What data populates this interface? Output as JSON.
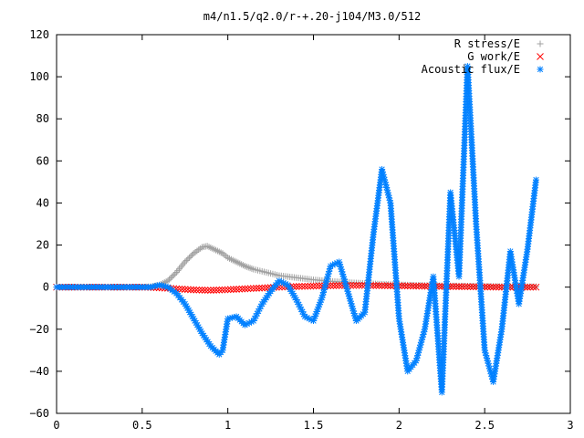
{
  "chart_data": {
    "type": "scatter",
    "title": "m4/n1.5/q2.0/r-+.20-j104/M3.0/512",
    "xlabel": "",
    "ylabel": "",
    "xlim": [
      0,
      3
    ],
    "ylim": [
      -60,
      120
    ],
    "xticks": [
      "0",
      "0.5",
      "1",
      "1.5",
      "2",
      "2.5",
      "3"
    ],
    "yticks": [
      "120",
      "100",
      "80",
      "60",
      "40",
      "20",
      "0",
      "−20",
      "−40",
      "−60"
    ],
    "grid": false,
    "legend_position": "top-right",
    "series": [
      {
        "name": "R stress/E",
        "marker": "plus",
        "color": "#a0a0a0",
        "x": [
          0.0,
          0.2,
          0.4,
          0.5,
          0.56,
          0.6,
          0.65,
          0.7,
          0.75,
          0.8,
          0.85,
          0.88,
          0.92,
          0.97,
          1.0,
          1.05,
          1.1,
          1.15,
          1.2,
          1.3,
          1.4,
          1.5,
          1.6,
          1.7,
          1.8,
          1.9,
          2.0,
          2.2,
          2.4,
          2.6,
          2.8
        ],
        "y": [
          0,
          0,
          0,
          0,
          0.3,
          1,
          3,
          7,
          12,
          16,
          19,
          19.5,
          18,
          16,
          14,
          12,
          10,
          8.5,
          7.5,
          5.5,
          4.5,
          3.5,
          2.8,
          2.2,
          1.8,
          1.4,
          1.1,
          0.7,
          0.5,
          0.3,
          0.2
        ]
      },
      {
        "name": "G work/E",
        "marker": "cross",
        "color": "#ff0000",
        "x": [
          0.0,
          0.3,
          0.5,
          0.6,
          0.7,
          0.8,
          0.9,
          1.0,
          1.1,
          1.2,
          1.3,
          1.4,
          1.5,
          1.6,
          1.7,
          1.8,
          1.9,
          2.0,
          2.1,
          2.2,
          2.3,
          2.4,
          2.5,
          2.6,
          2.7,
          2.8
        ],
        "y": [
          0,
          0,
          0,
          -0.3,
          -0.8,
          -1.3,
          -1.5,
          -1.2,
          -0.8,
          -0.4,
          0,
          0.3,
          0.5,
          0.7,
          0.8,
          0.8,
          0.7,
          0.6,
          0.5,
          0.4,
          0.3,
          0.2,
          0.1,
          0,
          0,
          0
        ]
      },
      {
        "name": "Acoustic flux/E",
        "marker": "star",
        "color": "#0080ff",
        "x": [
          0.0,
          0.3,
          0.55,
          0.6,
          0.65,
          0.7,
          0.75,
          0.8,
          0.85,
          0.9,
          0.95,
          0.97,
          1.0,
          1.05,
          1.1,
          1.15,
          1.2,
          1.25,
          1.3,
          1.35,
          1.4,
          1.45,
          1.5,
          1.55,
          1.6,
          1.65,
          1.7,
          1.75,
          1.8,
          1.85,
          1.9,
          1.95,
          2.0,
          2.05,
          2.1,
          2.15,
          2.2,
          2.25,
          2.3,
          2.35,
          2.4,
          2.45,
          2.5,
          2.55,
          2.6,
          2.65,
          2.7,
          2.75,
          2.8
        ],
        "y": [
          0,
          0,
          0,
          1,
          0,
          -3,
          -8,
          -15,
          -22,
          -28,
          -32,
          -30,
          -15,
          -14,
          -18,
          -16,
          -8,
          -2,
          3,
          1,
          -6,
          -14,
          -16,
          -5,
          10,
          12,
          -2,
          -16,
          -12,
          25,
          56,
          40,
          -15,
          -40,
          -35,
          -20,
          5,
          -50,
          45,
          5,
          105,
          30,
          -30,
          -45,
          -20,
          17,
          -8,
          18,
          51
        ]
      }
    ]
  }
}
